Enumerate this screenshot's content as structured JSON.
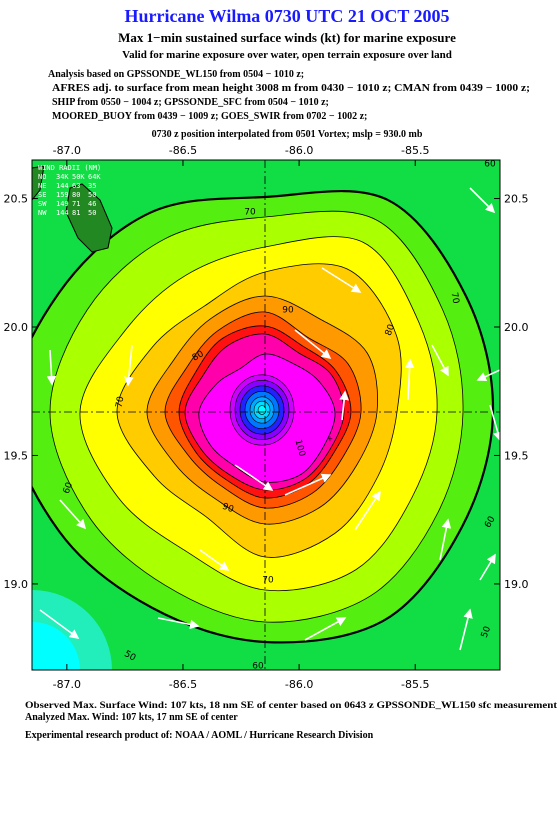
{
  "header": {
    "title": "Hurricane Wilma 0730 UTC 21 OCT 2005",
    "subtitle": "Max 1−min sustained surface winds (kt) for marine exposure",
    "note": "Valid for marine exposure over water, open terrain exposure over land",
    "analysis": [
      "Analysis based on  GPSSONDE_WL150 from 0504 − 1010 z;",
      "AFRES adj. to surface from mean height 3008 m from 0430 − 1010 z;  CMAN from 0439 − 1000 z;",
      "SHIP from 0550 − 1004 z;  GPSSONDE_SFC from 0504 − 1010 z;",
      "MOORED_BUOY from 0439 − 1009 z;  GOES_SWIR from 0702 − 1002 z;"
    ],
    "position": "0730 z position interpolated from 0501 Vortex; mslp = 930.0 mb"
  },
  "map": {
    "xlim": [
      -87.15,
      -85.135
    ],
    "ylim": [
      18.665,
      20.65
    ],
    "xticks": [
      {
        "value": -87.0,
        "label": "-87.0"
      },
      -86.5,
      {
        "value": -86.0,
        "label": "-86.0"
      },
      -85.5
    ],
    "yticks": [
      {
        "value": 19.0,
        "label": "19.0"
      },
      19.5,
      {
        "value": 20.0,
        "label": "20.0"
      },
      20.5
    ],
    "contour_labels": [
      60,
      70,
      70,
      80,
      90,
      80,
      70,
      60,
      90,
      100,
      60,
      70,
      50,
      50,
      60
    ],
    "wind_radii": {
      "title": "WIND RADII (NM)",
      "header": [
        "NO",
        "34K",
        "50K",
        "64K"
      ],
      "rows": [
        [
          "NE",
          144,
          63,
          35
        ],
        [
          "SE",
          159,
          80,
          50
        ],
        [
          "SW",
          149,
          71,
          46
        ],
        [
          "NW",
          144,
          81,
          50
        ]
      ]
    }
  },
  "footer": {
    "lines": [
      "Observed Max. Surface Wind: 107 kts, 18 nm SE of center based on 0643 z GPSSONDE_WL150 sfc measurement",
      "Analyzed Max. Wind: 107 kts, 17 nm SE of center",
      "Experimental research product of:  NOAA / AOML / Hurricane Research Division"
    ]
  }
}
